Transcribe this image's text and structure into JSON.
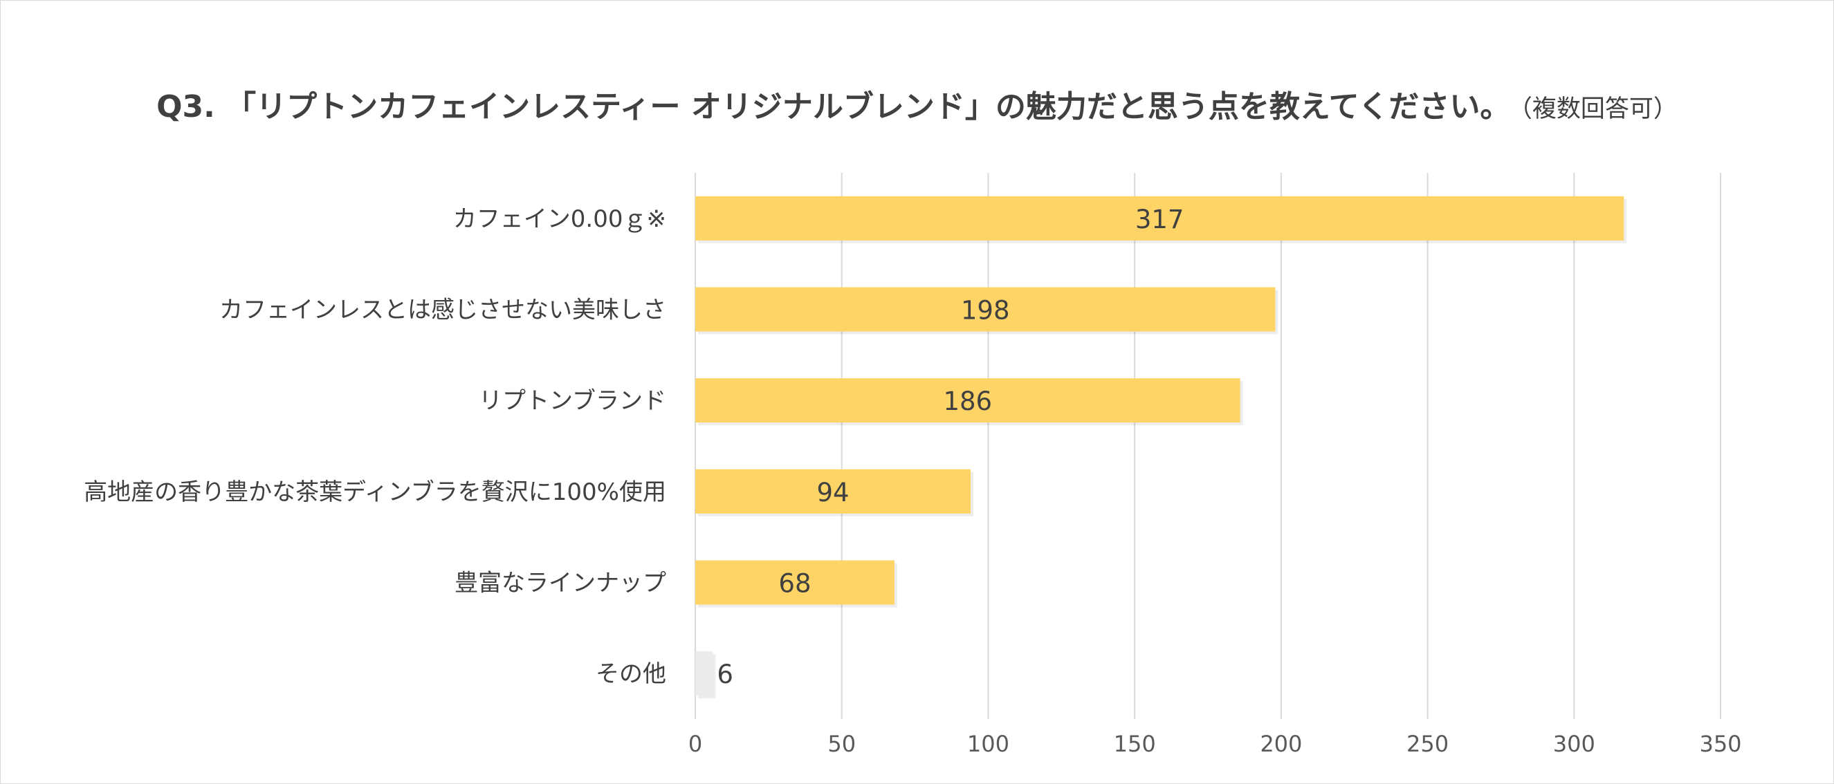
{
  "chart_data": {
    "type": "bar",
    "orientation": "horizontal",
    "title": "Q3. 「リプトンカフェインレスティー オリジナルブレンド」の魅力だと思う点を教えてください。",
    "subtitle": "（複数回答可）",
    "categories": [
      "カフェイン0.00ｇ※",
      "カフェインレスとは感じさせない美味しさ",
      "リプトンブランド",
      "高地産の香り豊かな茶葉ディンブラを贅沢に100%使用",
      "豊富なラインナップ",
      "その他"
    ],
    "values": [
      317,
      198,
      186,
      94,
      68,
      6
    ],
    "xlim": [
      0,
      350
    ],
    "xticks": [
      0,
      50,
      100,
      150,
      200,
      250,
      300,
      350
    ],
    "grid": true,
    "colors": {
      "bar": "#ffd466",
      "other_bar": "#ebebeb",
      "grid": "#d9d9d9",
      "text": "#404040"
    }
  }
}
